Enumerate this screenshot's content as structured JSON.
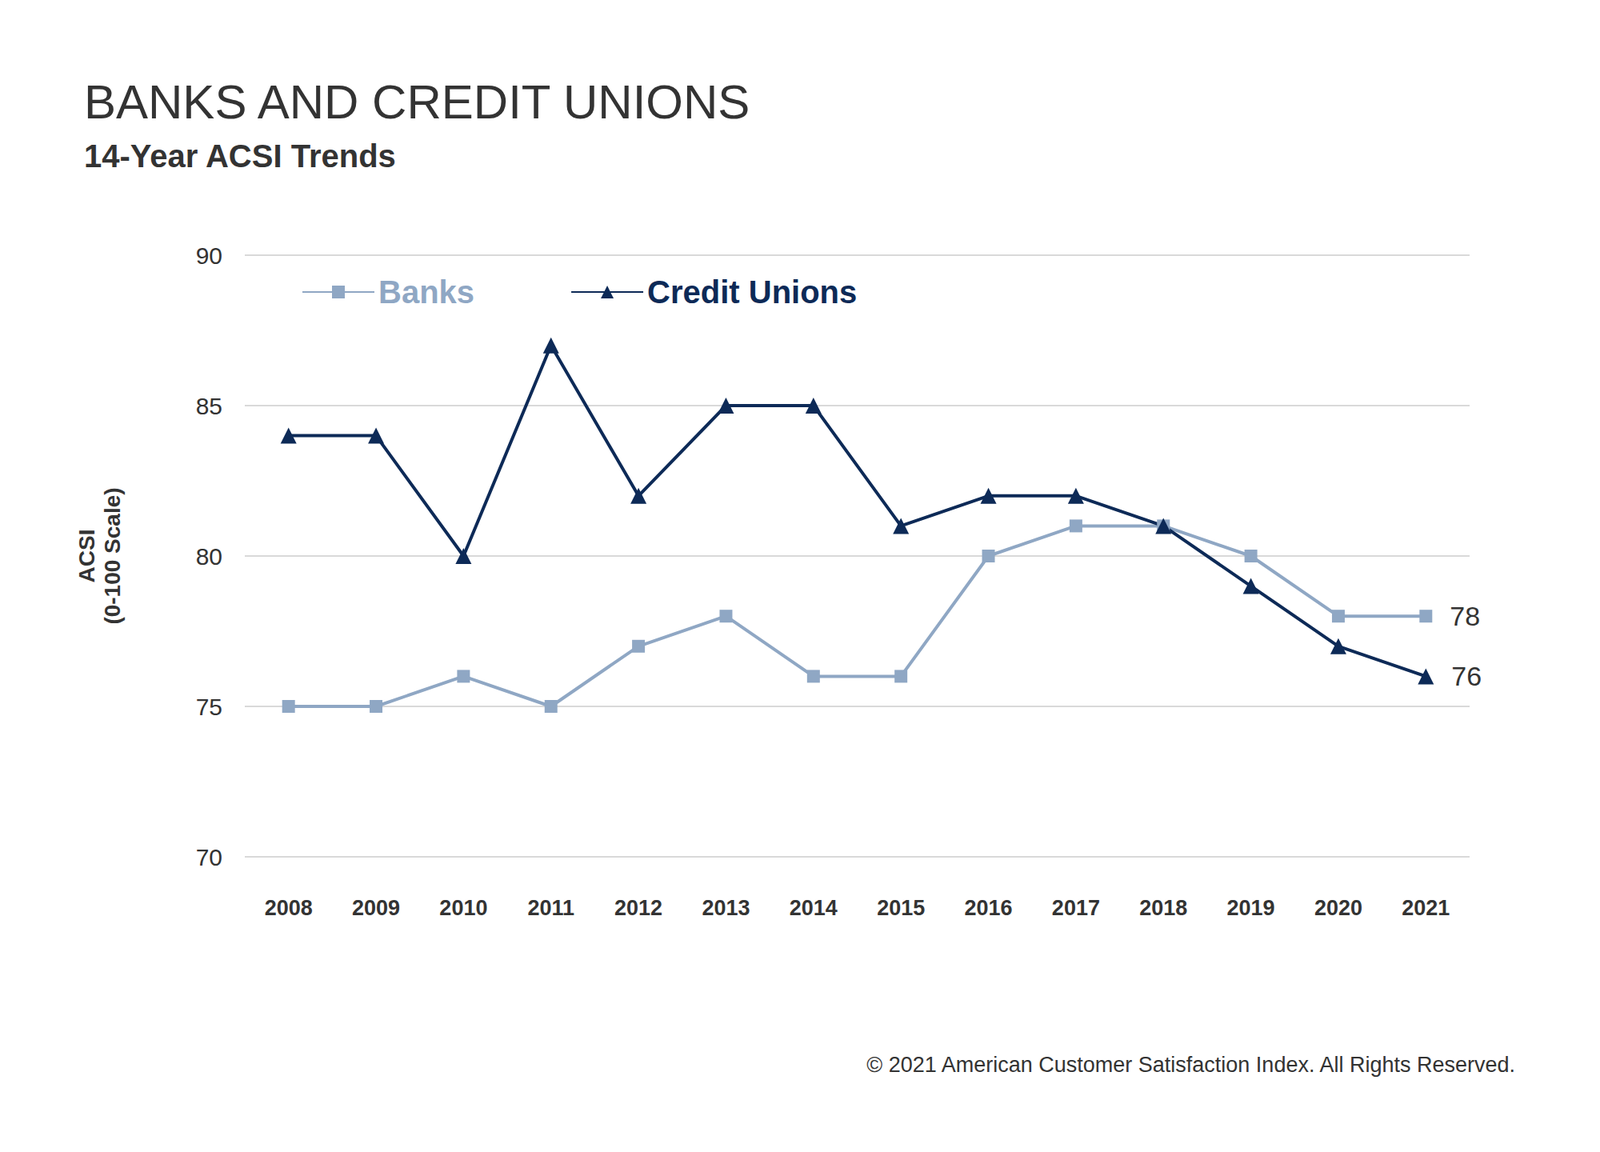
{
  "chart_data": {
    "type": "line",
    "title": "BANKS AND CREDIT UNIONS",
    "subtitle": "14-Year ACSI Trends",
    "y_label": "ACSI\n(0-100 Scale)",
    "note": "© 2021 American Customer Satisfaction Index. All Rights Reserved.",
    "categories": [
      "2008",
      "2009",
      "2010",
      "2011",
      "2012",
      "2013",
      "2014",
      "2015",
      "2016",
      "2017",
      "2018",
      "2019",
      "2020",
      "2021"
    ],
    "series": [
      {
        "name": "Banks",
        "color": "#8fa7c4",
        "marker": "square",
        "values": [
          75,
          75,
          76,
          75,
          77,
          78,
          76,
          76,
          80,
          81,
          81,
          80,
          78,
          78
        ],
        "value_labels": [
          null,
          null,
          null,
          null,
          null,
          null,
          null,
          null,
          null,
          null,
          null,
          null,
          null,
          "78"
        ]
      },
      {
        "name": "Credit Unions",
        "color": "#0d2a57",
        "marker": "triangle",
        "values": [
          84,
          84,
          80,
          87,
          82,
          85,
          85,
          81,
          82,
          82,
          81,
          79,
          77,
          76
        ],
        "value_labels": [
          null,
          null,
          null,
          null,
          null,
          null,
          null,
          null,
          null,
          null,
          null,
          null,
          null,
          "76"
        ]
      }
    ],
    "ylim": [
      70,
      90
    ],
    "yticks": [
      70,
      75,
      80,
      85,
      90
    ],
    "grid": true,
    "legend": "top-left"
  }
}
